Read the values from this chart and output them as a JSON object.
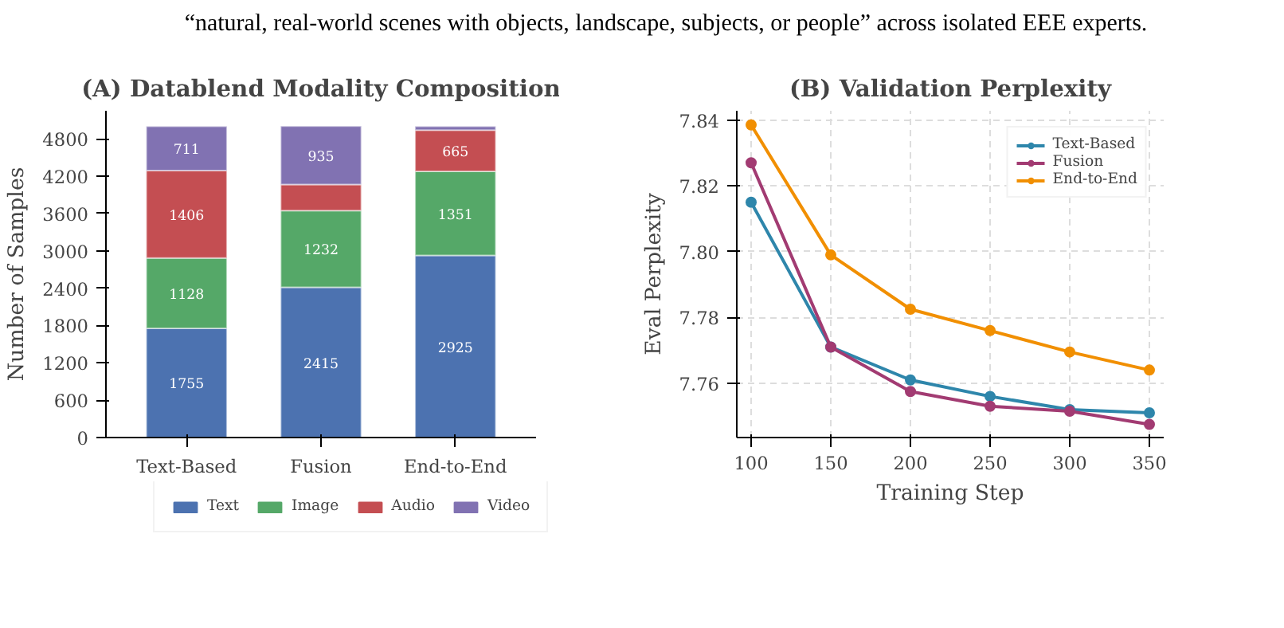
{
  "chart_data": [
    {
      "type": "bar",
      "title": "(A) Datablend Modality Composition",
      "ylabel": "Number of Samples",
      "stacked": true,
      "categories": [
        "Text-Based",
        "Fusion",
        "End-to-End"
      ],
      "ylim": [
        0,
        5250
      ],
      "yticks": [
        0,
        600,
        1200,
        1800,
        2400,
        3000,
        3600,
        4200,
        4800
      ],
      "grid": false,
      "legend": "bottom",
      "annotations": [
        "“natural, real-world scenes with objects, landscape, subjects, or people” across isolated EEE experts."
      ],
      "series": [
        {
          "name": "Text",
          "color": "#4c72b0",
          "values": [
            1755,
            2415,
            2925
          ],
          "value_labels": [
            "1755",
            "2415",
            "2925"
          ]
        },
        {
          "name": "Image",
          "color": "#55a868",
          "values": [
            1128,
            1232,
            1351
          ],
          "value_labels": [
            "1128",
            "1232",
            "1351"
          ]
        },
        {
          "name": "Audio",
          "color": "#c44e52",
          "values": [
            1406,
            420,
            665
          ],
          "value_labels": [
            "1406",
            null,
            "665"
          ]
        },
        {
          "name": "Video",
          "color": "#8172b2",
          "values": [
            711,
            935,
            60
          ],
          "value_labels": [
            "711",
            "935",
            null
          ]
        }
      ]
    },
    {
      "type": "line",
      "title": "(B) Validation Perplexity",
      "xlabel": "Training Step",
      "ylabel": "Eval Perplexity",
      "x": [
        100,
        150,
        200,
        250,
        300,
        350
      ],
      "xlim": [
        91,
        359
      ],
      "xticks": [
        100,
        150,
        200,
        250,
        300,
        350
      ],
      "ylim": [
        7.7435,
        7.8428
      ],
      "yticks": [
        7.76,
        7.78,
        {
          "value": 7.8,
          "label": "7.80"
        },
        7.82,
        7.84
      ],
      "grid": true,
      "legend": "top right",
      "marker": "circle",
      "line_style": "solid",
      "series": [
        {
          "name": "Text-Based",
          "color": "#2e86ab",
          "values": [
            7.815,
            7.771,
            7.761,
            7.756,
            7.752,
            7.751
          ]
        },
        {
          "name": "Fusion",
          "color": "#a23b72",
          "values": [
            7.827,
            7.771,
            7.7575,
            7.753,
            7.7515,
            7.7475
          ]
        },
        {
          "name": "End-to-End",
          "color": "#f18f01",
          "values": [
            7.8385,
            7.799,
            7.7825,
            7.776,
            7.7695,
            7.764
          ]
        }
      ]
    }
  ]
}
